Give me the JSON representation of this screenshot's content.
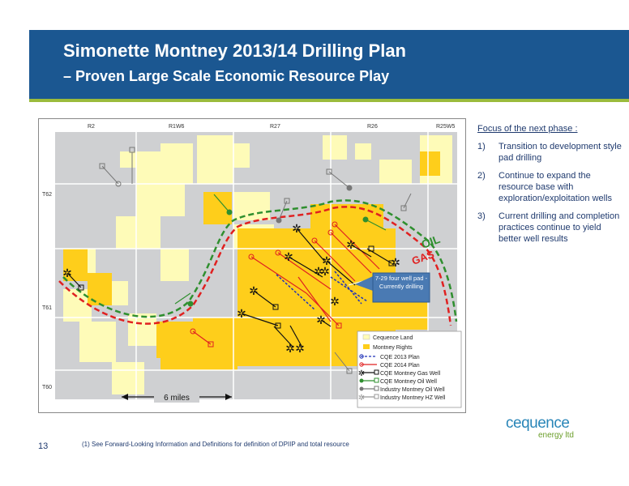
{
  "title": {
    "line1": "Simonette Montney 2013/14 Drilling Plan",
    "line2": "– Proven Large Scale Economic Resource Play"
  },
  "map": {
    "range_labels": [
      "R2",
      "R1W6",
      "R27",
      "R26",
      "R25W5"
    ],
    "township_labels": [
      "T62",
      "T61",
      "T60"
    ],
    "oil_label": "OIL",
    "gas_label": "GAS",
    "scale_label": "6 miles",
    "callout": "7-29 four well pad - Currently drilling",
    "legend": [
      "Cequence Land",
      "Montney Rights",
      "CQE 2013 Plan",
      "CQE 2014 Plan",
      "CQE Montney Gas Well",
      "CQE Montney Oil Well",
      "Industry Montney Oil Well",
      "Industry Montney HZ Well"
    ],
    "colors": {
      "cequence_land": "#fefbb8",
      "montney_rights": "#fece1b",
      "plan_2013": "#1e30b8",
      "plan_2014": "#e02020",
      "oil_line": "#2f8f2f",
      "gas_line": "#e02020"
    }
  },
  "side": {
    "heading": "Focus of the next phase :",
    "items": [
      {
        "num": "1)",
        "text": "Transition to development style pad drilling"
      },
      {
        "num": "2)",
        "text": "Continue to expand the resource base with exploration/exploitation wells"
      },
      {
        "num": "3)",
        "text": "Current drilling and completion practices continue to yield better well results"
      }
    ]
  },
  "footer": {
    "page_number": "13",
    "footnote": "(1)  See Forward-Looking Information and Definitions for definition of DPIIP and total resource"
  },
  "logo": {
    "main": "cequence",
    "sub": "energy ltd"
  }
}
